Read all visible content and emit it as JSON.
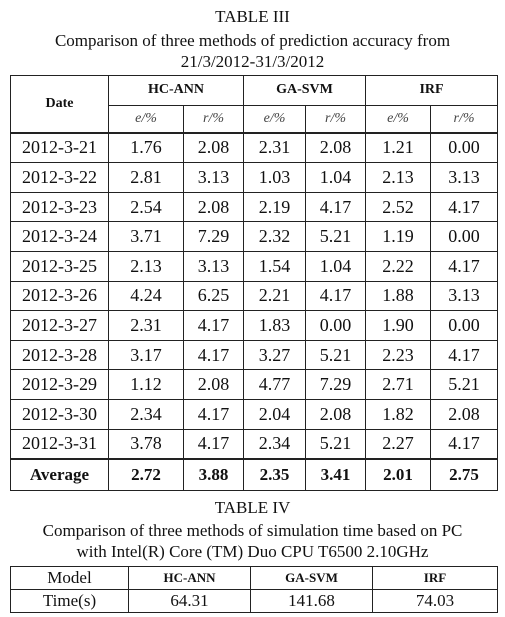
{
  "table3": {
    "label": "TABLE III",
    "caption": [
      "Comparison of three methods of prediction accuracy from",
      "21/3/2012-31/3/2012"
    ],
    "header": {
      "date": "Date",
      "groups": [
        "HC-ANN",
        "GA-SVM",
        "IRF"
      ],
      "subheaders": [
        "e/%",
        "r/%",
        "e/%",
        "r/%",
        "e/%",
        "r/%"
      ]
    },
    "rows": [
      [
        "2012-3-21",
        "1.76",
        "2.08",
        "2.31",
        "2.08",
        "1.21",
        "0.00"
      ],
      [
        "2012-3-22",
        "2.81",
        "3.13",
        "1.03",
        "1.04",
        "2.13",
        "3.13"
      ],
      [
        "2012-3-23",
        "2.54",
        "2.08",
        "2.19",
        "4.17",
        "2.52",
        "4.17"
      ],
      [
        "2012-3-24",
        "3.71",
        "7.29",
        "2.32",
        "5.21",
        "1.19",
        "0.00"
      ],
      [
        "2012-3-25",
        "2.13",
        "3.13",
        "1.54",
        "1.04",
        "2.22",
        "4.17"
      ],
      [
        "2012-3-26",
        "4.24",
        "6.25",
        "2.21",
        "4.17",
        "1.88",
        "3.13"
      ],
      [
        "2012-3-27",
        "2.31",
        "4.17",
        "1.83",
        "0.00",
        "1.90",
        "0.00"
      ],
      [
        "2012-3-28",
        "3.17",
        "4.17",
        "3.27",
        "5.21",
        "2.23",
        "4.17"
      ],
      [
        "2012-3-29",
        "1.12",
        "2.08",
        "4.77",
        "7.29",
        "2.71",
        "5.21"
      ],
      [
        "2012-3-30",
        "2.34",
        "4.17",
        "2.04",
        "2.08",
        "1.82",
        "2.08"
      ],
      [
        "2012-3-31",
        "3.78",
        "4.17",
        "2.34",
        "5.21",
        "2.27",
        "4.17"
      ]
    ],
    "average": [
      "Average",
      "2.72",
      "3.88",
      "2.35",
      "3.41",
      "2.01",
      "2.75"
    ]
  },
  "table4": {
    "label": "TABLE IV",
    "caption": [
      "Comparison of three methods of simulation time based on PC",
      "with Intel(R) Core (TM) Duo CPU T6500 2.10GHz"
    ],
    "header": [
      "Model",
      "HC-ANN",
      "GA-SVM",
      "IRF"
    ],
    "row": [
      "Time(s)",
      "64.31",
      "141.68",
      "74.03"
    ]
  }
}
